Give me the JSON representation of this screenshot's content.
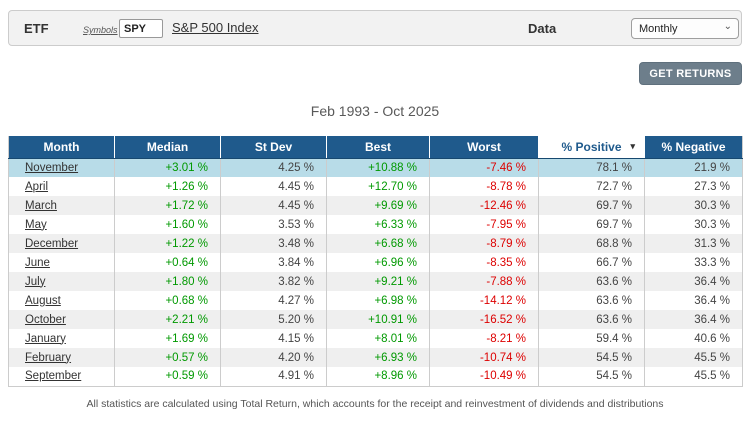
{
  "toolbar": {
    "etf_label": "ETF",
    "symbols_label": "Symbols",
    "symbol_value": "SPY",
    "index_name": "S&P 500 Index",
    "data_label": "Data",
    "frequency_selected": "Monthly"
  },
  "actions": {
    "get_returns_label": "GET RETURNS"
  },
  "title": "Feb 1993 - Oct 2025",
  "table": {
    "columns": [
      "Month",
      "Median",
      "St Dev",
      "Best",
      "Worst",
      "% Positive",
      "% Negative"
    ],
    "sorted_column": "% Positive",
    "sort_indicator": "▾",
    "rows": [
      {
        "month": "November",
        "median": "+3.01 %",
        "stdev": "4.25 %",
        "best": "+10.88 %",
        "worst": "-7.46 %",
        "positive": "78.1 %",
        "negative": "21.9 %",
        "highlighted": true
      },
      {
        "month": "April",
        "median": "+1.26 %",
        "stdev": "4.45 %",
        "best": "+12.70 %",
        "worst": "-8.78 %",
        "positive": "72.7 %",
        "negative": "27.3 %",
        "highlighted": false
      },
      {
        "month": "March",
        "median": "+1.72 %",
        "stdev": "4.45 %",
        "best": "+9.69 %",
        "worst": "-12.46 %",
        "positive": "69.7 %",
        "negative": "30.3 %",
        "highlighted": false
      },
      {
        "month": "May",
        "median": "+1.60 %",
        "stdev": "3.53 %",
        "best": "+6.33 %",
        "worst": "-7.95 %",
        "positive": "69.7 %",
        "negative": "30.3 %",
        "highlighted": false
      },
      {
        "month": "December",
        "median": "+1.22 %",
        "stdev": "3.48 %",
        "best": "+6.68 %",
        "worst": "-8.79 %",
        "positive": "68.8 %",
        "negative": "31.3 %",
        "highlighted": false
      },
      {
        "month": "June",
        "median": "+0.64 %",
        "stdev": "3.84 %",
        "best": "+6.96 %",
        "worst": "-8.35 %",
        "positive": "66.7 %",
        "negative": "33.3 %",
        "highlighted": false
      },
      {
        "month": "July",
        "median": "+1.80 %",
        "stdev": "3.82 %",
        "best": "+9.21 %",
        "worst": "-7.88 %",
        "positive": "63.6 %",
        "negative": "36.4 %",
        "highlighted": false
      },
      {
        "month": "August",
        "median": "+0.68 %",
        "stdev": "4.27 %",
        "best": "+6.98 %",
        "worst": "-14.12 %",
        "positive": "63.6 %",
        "negative": "36.4 %",
        "highlighted": false
      },
      {
        "month": "October",
        "median": "+2.21 %",
        "stdev": "5.20 %",
        "best": "+10.91 %",
        "worst": "-16.52 %",
        "positive": "63.6 %",
        "negative": "36.4 %",
        "highlighted": false
      },
      {
        "month": "January",
        "median": "+1.69 %",
        "stdev": "4.15 %",
        "best": "+8.01 %",
        "worst": "-8.21 %",
        "positive": "59.4 %",
        "negative": "40.6 %",
        "highlighted": false
      },
      {
        "month": "February",
        "median": "+0.57 %",
        "stdev": "4.20 %",
        "best": "+6.93 %",
        "worst": "-10.74 %",
        "positive": "54.5 %",
        "negative": "45.5 %",
        "highlighted": false
      },
      {
        "month": "September",
        "median": "+0.59 %",
        "stdev": "4.91 %",
        "best": "+8.96 %",
        "worst": "-10.49 %",
        "positive": "54.5 %",
        "negative": "45.5 %",
        "highlighted": false
      }
    ]
  },
  "footnote": "All statistics are calculated using Total Return, which accounts for the receipt and reinvestment of dividends and distributions",
  "colors": {
    "header_blue": "#1f5a8c",
    "highlight_row_blue": "#b8dce8",
    "alt_row_gray": "#efefef",
    "positive_green": "#009900",
    "negative_red": "#dd0000",
    "button_slate": "#6d7e8b",
    "toolbar_gray": "#f2f2f2"
  }
}
